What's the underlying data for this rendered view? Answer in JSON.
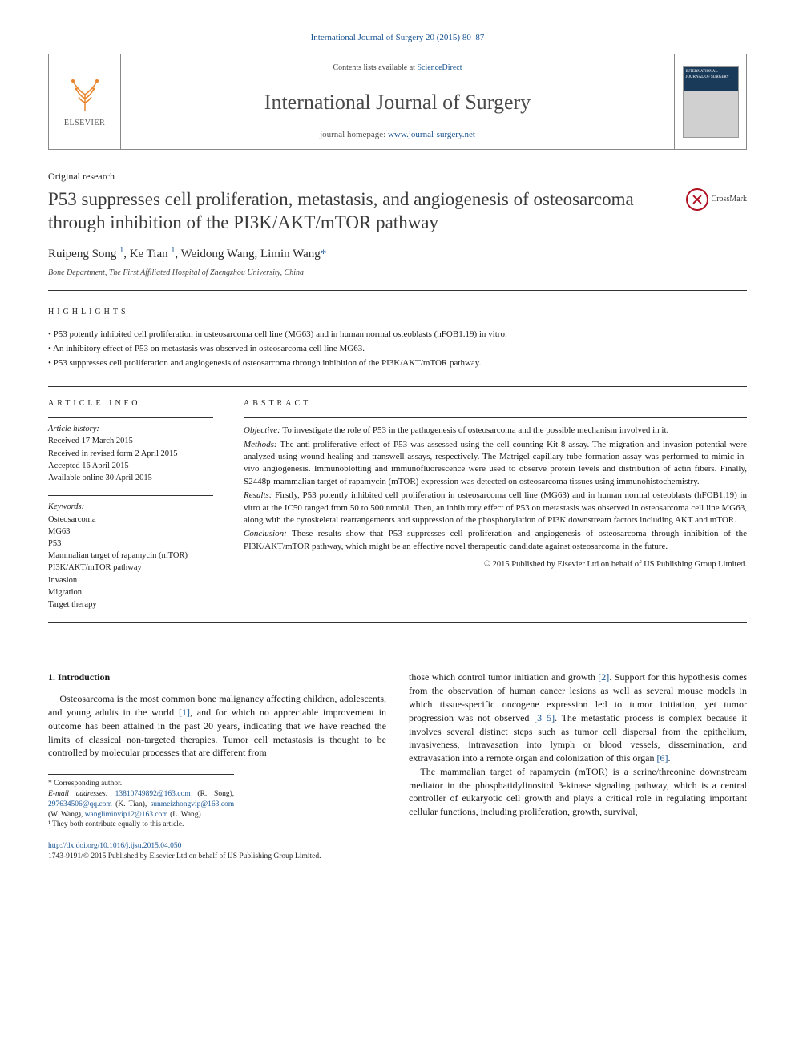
{
  "citation": "International Journal of Surgery 20 (2015) 80–87",
  "header": {
    "contents_prefix": "Contents lists available at ",
    "contents_link": "ScienceDirect",
    "journal": "International Journal of Surgery",
    "homepage_prefix": "journal homepage: ",
    "homepage_url": "www.journal-surgery.net",
    "publisher": "ELSEVIER",
    "cover_label": "INTERNATIONAL JOURNAL OF SURGERY"
  },
  "article_type": "Original research",
  "title": "P53 suppresses cell proliferation, metastasis, and angiogenesis of osteosarcoma through inhibition of the PI3K/AKT/mTOR pathway",
  "crossmark": "CrossMark",
  "authors_html": "Ruipeng Song <sup>1</sup>, Ke Tian <sup>1</sup>, Weidong Wang, Limin Wang<span class='asterisk'>*</span>",
  "affiliation": "Bone Department, The First Affiliated Hospital of Zhengzhou University, China",
  "highlights_label": "HIGHLIGHTS",
  "highlights": [
    "P53 potently inhibited cell proliferation in osteosarcoma cell line (MG63) and in human normal osteoblasts (hFOB1.19) in vitro.",
    "An inhibitory effect of P53 on metastasis was observed in osteosarcoma cell line MG63.",
    "P53 suppresses cell proliferation and angiogenesis of osteosarcoma through inhibition of the PI3K/AKT/mTOR pathway."
  ],
  "article_info_label": "ARTICLE INFO",
  "history": {
    "label": "Article history:",
    "received": "Received 17 March 2015",
    "revised": "Received in revised form 2 April 2015",
    "accepted": "Accepted 16 April 2015",
    "online": "Available online 30 April 2015"
  },
  "keywords_label": "Keywords:",
  "keywords": [
    "Osteosarcoma",
    "MG63",
    "P53",
    "Mammalian target of rapamycin (mTOR)",
    "PI3K/AKT/mTOR pathway",
    "Invasion",
    "Migration",
    "Target therapy"
  ],
  "abstract_label": "ABSTRACT",
  "abstract": {
    "objective_label": "Objective:",
    "objective": " To investigate the role of P53 in the pathogenesis of osteosarcoma and the possible mechanism involved in it.",
    "methods_label": "Methods:",
    "methods": " The anti-proliferative effect of P53 was assessed using the cell counting Kit-8 assay. The migration and invasion potential were analyzed using wound-healing and transwell assays, respectively. The Matrigel capillary tube formation assay was performed to mimic in-vivo angiogenesis. Immunoblotting and immunofluorescence were used to observe protein levels and distribution of actin fibers. Finally, S2448p-mammalian target of rapamycin (mTOR) expression was detected on osteosarcoma tissues using immunohistochemistry.",
    "results_label": "Results:",
    "results": " Firstly, P53 potently inhibited cell proliferation in osteosarcoma cell line (MG63) and in human normal osteoblasts (hFOB1.19) in vitro at the IC50 ranged from 50 to 500 nmol/l. Then, an inhibitory effect of P53 on metastasis was observed in osteosarcoma cell line MG63, along with the cytoskeletal rearrangements and suppression of the phosphorylation of PI3K downstream factors including AKT and mTOR.",
    "conclusion_label": "Conclusion:",
    "conclusion": " These results show that P53 suppresses cell proliferation and angiogenesis of osteosarcoma through inhibition of the PI3K/AKT/mTOR pathway, which might be an effective novel therapeutic candidate against osteosarcoma in the future.",
    "copyright": "© 2015 Published by Elsevier Ltd on behalf of IJS Publishing Group Limited."
  },
  "intro": {
    "heading": "1. Introduction",
    "p1a": "Osteosarcoma is the most common bone malignancy affecting children, adolescents, and young adults in the world ",
    "ref1": "[1]",
    "p1b": ", and for which no appreciable improvement in outcome has been attained in the past 20 years, indicating that we have reached the limits of classical non-targeted therapies. Tumor cell metastasis is thought to be controlled by molecular processes that are different from",
    "p2a": "those which control tumor initiation and growth ",
    "ref2": "[2]",
    "p2b": ". Support for this hypothesis comes from the observation of human cancer lesions as well as several mouse models in which tissue-specific oncogene expression led to tumor initiation, yet tumor progression was not observed ",
    "ref3": "[3–5]",
    "p2c": ". The metastatic process is complex because it involves several distinct steps such as tumor cell dispersal from the epithelium, invasiveness, intravasation into lymph or blood vessels, dissemination, and extravasation into a remote organ and colonization of this organ ",
    "ref6": "[6]",
    "p2d": ".",
    "p3": "The mammalian target of rapamycin (mTOR) is a serine/threonine downstream mediator in the phosphatidylinositol 3-kinase signaling pathway, which is a central controller of eukaryotic cell growth and plays a critical role in regulating important cellular functions, including proliferation, growth, survival,"
  },
  "footnotes": {
    "corresponding": "* Corresponding author.",
    "email_label": "E-mail addresses:",
    "e1": "13810749892@163.com",
    "n1": "(R. Song),",
    "e2": "297634506@qq.com",
    "n2": "(K. Tian),",
    "e3": "sunmeizhongvip@163.com",
    "n3": "(W. Wang),",
    "e4": "wangliminvip12@163.com",
    "n4": "(L. Wang).",
    "contrib": "¹ They both contribute equally to this article."
  },
  "doi": {
    "url": "http://dx.doi.org/10.1016/j.ijsu.2015.04.050",
    "issn_line": "1743-9191/© 2015 Published by Elsevier Ltd on behalf of IJS Publishing Group Limited."
  },
  "colors": {
    "link": "#1a5490",
    "text": "#1a1a1a",
    "rule": "#333333"
  }
}
